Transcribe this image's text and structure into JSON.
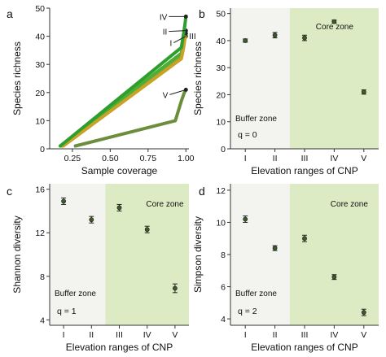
{
  "colors": {
    "buffer_bg": "#f3f3ef",
    "core_bg": "#dcebc3",
    "point_fill": "#3f5a2a",
    "errorbar": "#222222",
    "curve_I": "#7fa838",
    "curve_II": "#4caf34",
    "curve_III": "#c9a227",
    "curve_IV": "#2e9e2e",
    "curve_V": "#6b8e3c"
  },
  "chart_data": [
    {
      "panel": "a",
      "type": "line",
      "xlabel": "Sample coverage",
      "ylabel": "Species richness",
      "xlim": [
        0.1,
        1.02
      ],
      "ylim": [
        0,
        50
      ],
      "xticks": [
        "0.25",
        "0.50",
        "0.75",
        "1.00"
      ],
      "xtick_values": [
        0.25,
        0.5,
        0.75,
        1.0
      ],
      "yticks": [
        "0",
        "10",
        "20",
        "30",
        "40",
        "50"
      ],
      "ytick_values": [
        0,
        10,
        20,
        30,
        40,
        50
      ],
      "series": [
        {
          "name": "I",
          "color_key": "curve_I",
          "x": [
            0.18,
            0.97,
            0.985,
            0.993,
            1.0
          ],
          "y": [
            1,
            33,
            37,
            39,
            40
          ]
        },
        {
          "name": "II",
          "color_key": "curve_II",
          "x": [
            0.17,
            0.97,
            0.985,
            0.993,
            1.0
          ],
          "y": [
            1,
            34,
            38,
            40,
            42
          ]
        },
        {
          "name": "III",
          "color_key": "curve_III",
          "x": [
            0.19,
            0.97,
            0.985,
            0.993,
            1.0
          ],
          "y": [
            1,
            32,
            36,
            39,
            41
          ]
        },
        {
          "name": "IV",
          "color_key": "curve_IV",
          "x": [
            0.17,
            0.97,
            0.985,
            0.993,
            1.0
          ],
          "y": [
            1,
            36,
            41,
            44,
            47
          ]
        },
        {
          "name": "V",
          "color_key": "curve_V",
          "x": [
            0.27,
            0.93,
            0.97,
            0.99,
            1.0
          ],
          "y": [
            1,
            10,
            17,
            20,
            21
          ]
        }
      ],
      "curve_labels": [
        {
          "text": "IV",
          "series": "IV"
        },
        {
          "text": "II",
          "series": "II"
        },
        {
          "text": "I",
          "series": "I"
        },
        {
          "text": "III",
          "series": "III"
        },
        {
          "text": "V",
          "series": "V"
        }
      ]
    },
    {
      "panel": "b",
      "type": "scatter",
      "xlabel": "Elevation ranges of CNP",
      "ylabel": "Species richness",
      "categories": [
        "I",
        "II",
        "III",
        "IV",
        "V"
      ],
      "values": [
        40,
        42,
        41,
        47,
        21
      ],
      "errors": [
        0.6,
        1.0,
        1.0,
        0.6,
        0.8
      ],
      "ylim": [
        0,
        52
      ],
      "yticks": [
        "0",
        "10",
        "20",
        "30",
        "40",
        "50"
      ],
      "ytick_values": [
        0,
        10,
        20,
        30,
        40,
        50
      ],
      "buffer_label": "Buffer zone",
      "core_label": "Core zone",
      "q_label": "q = 0"
    },
    {
      "panel": "c",
      "type": "scatter",
      "xlabel": "Elevation ranges of CNP",
      "ylabel": "Shannon diversity",
      "categories": [
        "I",
        "II",
        "III",
        "IV",
        "V"
      ],
      "values": [
        14.9,
        13.2,
        14.3,
        12.3,
        6.9
      ],
      "errors": [
        0.3,
        0.3,
        0.3,
        0.3,
        0.4
      ],
      "ylim": [
        3.5,
        16.5
      ],
      "yticks": [
        "4",
        "8",
        "12",
        "16"
      ],
      "ytick_values": [
        4,
        8,
        12,
        16
      ],
      "buffer_label": "Buffer zone",
      "core_label": "Core zone",
      "q_label": "q = 1"
    },
    {
      "panel": "d",
      "type": "scatter",
      "xlabel": "Elevation ranges of CNP",
      "ylabel": "Simpson diversity",
      "categories": [
        "I",
        "II",
        "III",
        "IV",
        "V"
      ],
      "values": [
        10.2,
        8.4,
        9.0,
        6.6,
        4.4
      ],
      "errors": [
        0.2,
        0.15,
        0.2,
        0.15,
        0.2
      ],
      "ylim": [
        3.6,
        12.4
      ],
      "yticks": [
        "4",
        "6",
        "8",
        "10",
        "12"
      ],
      "ytick_values": [
        4,
        6,
        8,
        10,
        12
      ],
      "buffer_label": "Buffer zone",
      "core_label": "Core zone",
      "q_label": "q = 2"
    }
  ]
}
